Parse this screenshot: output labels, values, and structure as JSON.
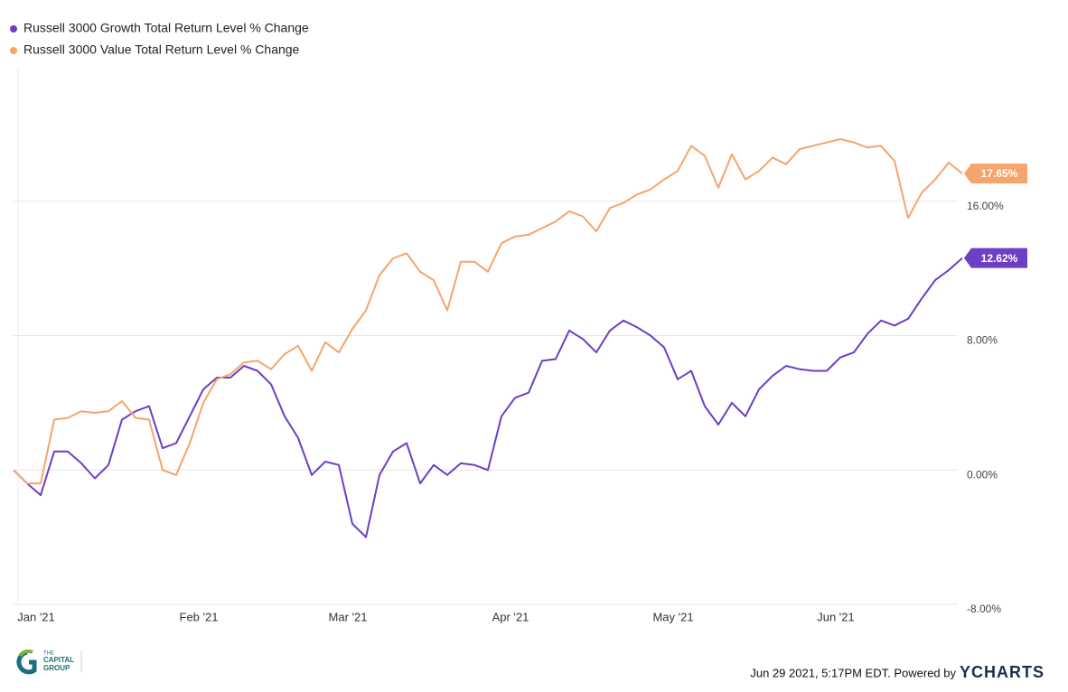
{
  "chart_data": {
    "type": "line",
    "categories": [
      "Jan '21",
      null,
      null,
      null,
      null,
      null,
      null,
      null,
      null,
      null,
      null,
      null,
      "Feb '21",
      null,
      null,
      null,
      null,
      null,
      null,
      null,
      null,
      null,
      null,
      "Mar '21",
      null,
      null,
      null,
      null,
      null,
      null,
      null,
      null,
      null,
      null,
      null,
      "Apr '21",
      null,
      null,
      null,
      null,
      null,
      null,
      null,
      null,
      null,
      null,
      null,
      "May '21",
      null,
      null,
      null,
      null,
      null,
      null,
      null,
      null,
      null,
      null,
      null,
      "Jun '21",
      null,
      null,
      null,
      null,
      null,
      null,
      null,
      null,
      null,
      null,
      null
    ],
    "series": [
      {
        "name": "Russell 3000 Growth Total Return Level % Change",
        "color": "#6c3fc4",
        "values": [
          0,
          -0.8,
          -1.5,
          1.1,
          1.1,
          0.4,
          -0.5,
          0.3,
          3.0,
          3.5,
          3.8,
          1.3,
          1.6,
          3.2,
          4.8,
          5.5,
          5.5,
          6.2,
          5.9,
          5.1,
          3.2,
          1.9,
          -0.3,
          0.5,
          0.3,
          -3.2,
          -4.0,
          -0.3,
          1.1,
          1.6,
          -0.8,
          0.3,
          -0.3,
          0.4,
          0.3,
          0,
          3.2,
          4.3,
          4.6,
          6.5,
          6.6,
          8.3,
          7.8,
          7.0,
          8.3,
          8.9,
          8.5,
          8.0,
          7.3,
          5.4,
          5.9,
          3.8,
          2.7,
          4.0,
          3.2,
          4.8,
          5.6,
          6.2,
          6.0,
          5.9,
          5.9,
          6.7,
          7.0,
          8.1,
          8.9,
          8.6,
          9.0,
          10.2,
          11.3,
          11.9,
          12.62
        ],
        "value_labels": [
          null,
          null,
          null,
          null,
          null,
          null,
          null,
          null,
          null,
          null,
          null,
          null,
          null,
          null,
          null,
          null,
          null,
          null,
          null,
          null,
          null,
          null,
          null,
          null,
          null,
          null,
          null,
          null,
          null,
          null,
          null,
          null,
          null,
          null,
          null,
          null,
          null,
          null,
          null,
          null,
          null,
          null,
          null,
          null,
          null,
          null,
          null,
          null,
          null,
          null,
          null,
          null,
          null,
          null,
          null,
          null,
          null,
          null,
          null,
          null,
          null,
          null,
          null,
          null,
          null,
          null,
          null,
          null,
          null,
          null,
          "12.62%"
        ]
      },
      {
        "name": "Russell 3000 Value Total Return Level % Change",
        "color": "#f5a46b",
        "values": [
          0,
          -0.8,
          -0.8,
          3.0,
          3.1,
          3.5,
          3.4,
          3.5,
          4.1,
          3.1,
          3.0,
          0.0,
          -0.3,
          1.6,
          4.0,
          5.4,
          5.7,
          6.4,
          6.5,
          6.0,
          6.9,
          7.4,
          5.9,
          7.6,
          7.0,
          8.4,
          9.5,
          11.6,
          12.6,
          12.9,
          11.8,
          11.3,
          9.5,
          12.4,
          12.4,
          11.8,
          13.5,
          13.9,
          14.0,
          14.4,
          14.8,
          15.4,
          15.1,
          14.2,
          15.6,
          15.9,
          16.4,
          16.7,
          17.3,
          17.8,
          19.3,
          18.7,
          16.8,
          18.8,
          17.3,
          17.8,
          18.6,
          18.2,
          19.1,
          19.3,
          19.5,
          19.7,
          19.5,
          19.2,
          19.3,
          18.4,
          15.0,
          16.5,
          17.3,
          18.3,
          17.65
        ],
        "value_labels": [
          null,
          null,
          null,
          null,
          null,
          null,
          null,
          null,
          null,
          null,
          null,
          null,
          null,
          null,
          null,
          null,
          null,
          null,
          null,
          null,
          null,
          null,
          null,
          null,
          null,
          null,
          null,
          null,
          null,
          null,
          null,
          null,
          null,
          null,
          null,
          null,
          null,
          null,
          null,
          null,
          null,
          null,
          null,
          null,
          null,
          null,
          null,
          null,
          null,
          null,
          null,
          null,
          null,
          null,
          null,
          null,
          null,
          null,
          null,
          null,
          null,
          null,
          null,
          null,
          null,
          null,
          null,
          null,
          null,
          null,
          "17.65%"
        ]
      }
    ],
    "ylim": [
      -8,
      24
    ],
    "yticks": [
      {
        "value": -8,
        "label": "-8.00%"
      },
      {
        "value": 0,
        "label": "0.00%"
      },
      {
        "value": 8,
        "label": "8.00%"
      },
      {
        "value": 16,
        "label": "16.00%"
      }
    ],
    "grid": true,
    "legend": "top-left"
  },
  "footer": {
    "timestamp": "Jun 29 2021, 5:17PM EDT. Powered by",
    "brand": "YCHARTS",
    "logo": [
      "THE",
      "CAPITAL",
      "GROUP"
    ]
  }
}
